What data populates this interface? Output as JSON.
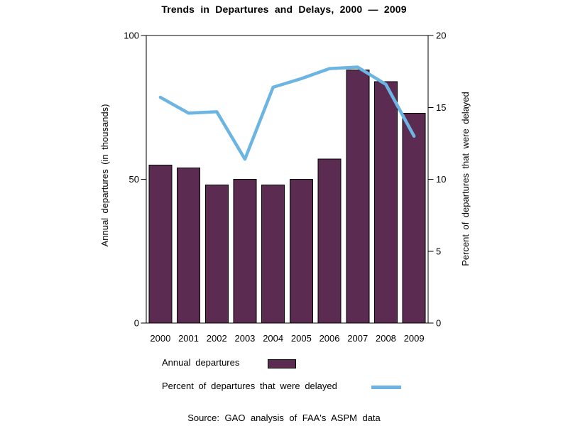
{
  "chart_data": {
    "type": "bar",
    "title": "Trends in Departures and Delays, 2000 — 2009",
    "categories": [
      "2000",
      "2001",
      "2002",
      "2003",
      "2004",
      "2005",
      "2006",
      "2007",
      "2008",
      "2009"
    ],
    "series": [
      {
        "name": "Annual departures",
        "type": "bar",
        "axis": "left",
        "values": [
          55,
          54,
          48,
          50,
          48,
          50,
          57,
          88,
          84,
          73
        ]
      },
      {
        "name": "Percent of departures that were delayed",
        "type": "line",
        "axis": "right",
        "values": [
          15.7,
          14.6,
          14.7,
          11.4,
          16.4,
          17.0,
          17.7,
          17.8,
          16.6,
          13.0
        ]
      }
    ],
    "left_axis": {
      "label": "Annual departures (in thousands)",
      "range": [
        0,
        100
      ],
      "ticks": [
        0,
        50,
        100
      ]
    },
    "right_axis": {
      "label": "Percent of departures that were delayed",
      "range": [
        0,
        20
      ],
      "ticks": [
        0,
        5,
        10,
        15,
        20
      ]
    },
    "grid": false,
    "legend": {
      "position": "bottom-left",
      "items": [
        {
          "label": "Annual departures",
          "swatch": "bar"
        },
        {
          "label": "Percent of departures that were delayed",
          "swatch": "line"
        }
      ]
    }
  },
  "source_note": "Source: GAO analysis of FAA's ASPM data",
  "colors": {
    "bar": "#5B2B52",
    "line": "#6CB5E2",
    "frame": "#000000",
    "text": "#000000",
    "background": "#FFFFFF"
  }
}
